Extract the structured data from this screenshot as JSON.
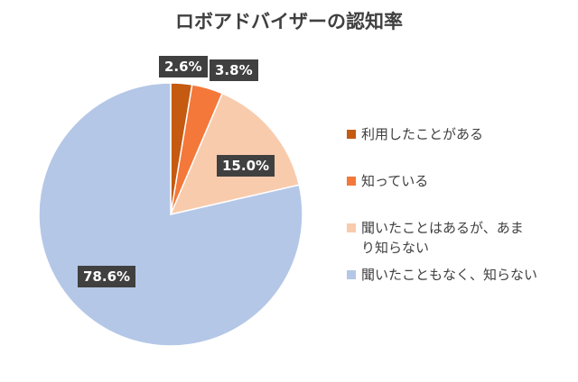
{
  "chart_data": {
    "type": "pie",
    "title": "ロボアドバイザーの認知率",
    "slices": [
      {
        "label": "利用したことがある",
        "value": 2.6,
        "value_label": "2.6%",
        "color": "#c55a11"
      },
      {
        "label": "知っている",
        "value": 3.8,
        "value_label": "3.8%",
        "color": "#f4783a"
      },
      {
        "label": "聞いたことはあるが、あまり知らない",
        "value": 15.0,
        "value_label": "15.0%",
        "color": "#f8cbad"
      },
      {
        "label": "聞いたこともなく、知らない",
        "value": 78.6,
        "value_label": "78.6%",
        "color": "#b4c7e7"
      }
    ],
    "start_angle_deg": 0,
    "direction": "clockwise",
    "legend_position": "right",
    "label_style": "dark-box"
  }
}
